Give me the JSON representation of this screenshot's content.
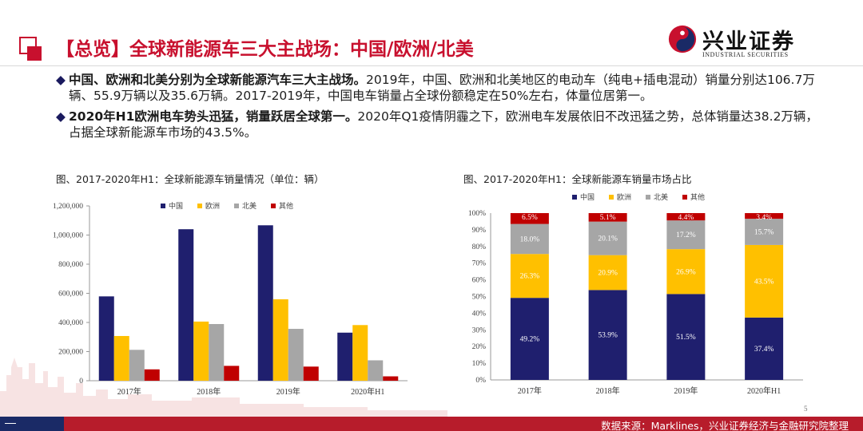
{
  "header": {
    "title": "【总览】全球新能源车三大主战场：中国/欧洲/北美",
    "logo_cn": "兴业证券",
    "logo_en": "INDUSTRIAL SECURITIES"
  },
  "bullets": [
    {
      "bold": "中国、欧洲和北美分别为全球新能源汽车三大主战场。",
      "text": "2019年，中国、欧洲和北美地区的电动车（纯电+插电混动）销量分别达106.7万辆、55.9万辆以及35.6万辆。2017-2019年，中国电车销量占全球份额稳定在50%左右，体量位居第一。"
    },
    {
      "bold": "2020年H1欧洲电车势头迅猛，销量跃居全球第一。",
      "text": "2020年Q1疫情阴霾之下，欧洲电车发展依旧不改迅猛之势，总体销量达38.2万辆，占据全球新能源车市场的43.5%。"
    }
  ],
  "colors": {
    "中国": "#1f1f6e",
    "欧洲": "#ffc000",
    "北美": "#a6a6a6",
    "其他": "#c00000",
    "accent": "#c8102e",
    "footer": "#b71c2b"
  },
  "chart_data": [
    {
      "type": "bar",
      "title": "图、2017-2020年H1：全球新能源车销量情况（单位：辆）",
      "categories": [
        "2017年",
        "2018年",
        "2019年",
        "2020年H1"
      ],
      "series": [
        {
          "name": "中国",
          "values": [
            579000,
            1040000,
            1067000,
            330000
          ]
        },
        {
          "name": "欧洲",
          "values": [
            307000,
            406000,
            559000,
            382000
          ]
        },
        {
          "name": "北美",
          "values": [
            212000,
            389000,
            356000,
            140000
          ]
        },
        {
          "name": "其他",
          "values": [
            78000,
            102000,
            97000,
            30000
          ]
        }
      ],
      "ylim": [
        0,
        1200000
      ],
      "yticks": [
        "0",
        "200,000",
        "400,000",
        "600,000",
        "800,000",
        "1,000,000",
        "1,200,000"
      ],
      "legend": "top",
      "grid": false
    },
    {
      "type": "bar",
      "stacked": true,
      "title": "图、2017-2020年H1：全球新能源车销量市场占比",
      "categories": [
        "2017年",
        "2018年",
        "2019年",
        "2020年H1"
      ],
      "series": [
        {
          "name": "中国",
          "values": [
            49.2,
            53.9,
            51.5,
            37.4
          ],
          "labels": [
            "49.2%",
            "53.9%",
            "51.5%",
            "37.4%"
          ]
        },
        {
          "name": "欧洲",
          "values": [
            26.3,
            20.9,
            26.9,
            43.5
          ],
          "labels": [
            "26.3%",
            "20.9%",
            "26.9%",
            "43.5%"
          ]
        },
        {
          "name": "北美",
          "values": [
            18.0,
            20.1,
            17.2,
            15.7
          ],
          "labels": [
            "18.0%",
            "20.1%",
            "17.2%",
            "15.7%"
          ]
        },
        {
          "name": "其他",
          "values": [
            6.5,
            5.1,
            4.4,
            3.4
          ],
          "labels": [
            "6.5%",
            "5.1%",
            "4.4%",
            "3.4%"
          ]
        }
      ],
      "ylim": [
        0,
        100
      ],
      "yticks": [
        "0%",
        "10%",
        "20%",
        "30%",
        "40%",
        "50%",
        "60%",
        "70%",
        "80%",
        "90%",
        "100%"
      ],
      "legend": "top",
      "grid": false
    }
  ],
  "footer": {
    "source": "数据来源：Marklines，兴业证券经济与金融研究院整理",
    "page": "5"
  }
}
